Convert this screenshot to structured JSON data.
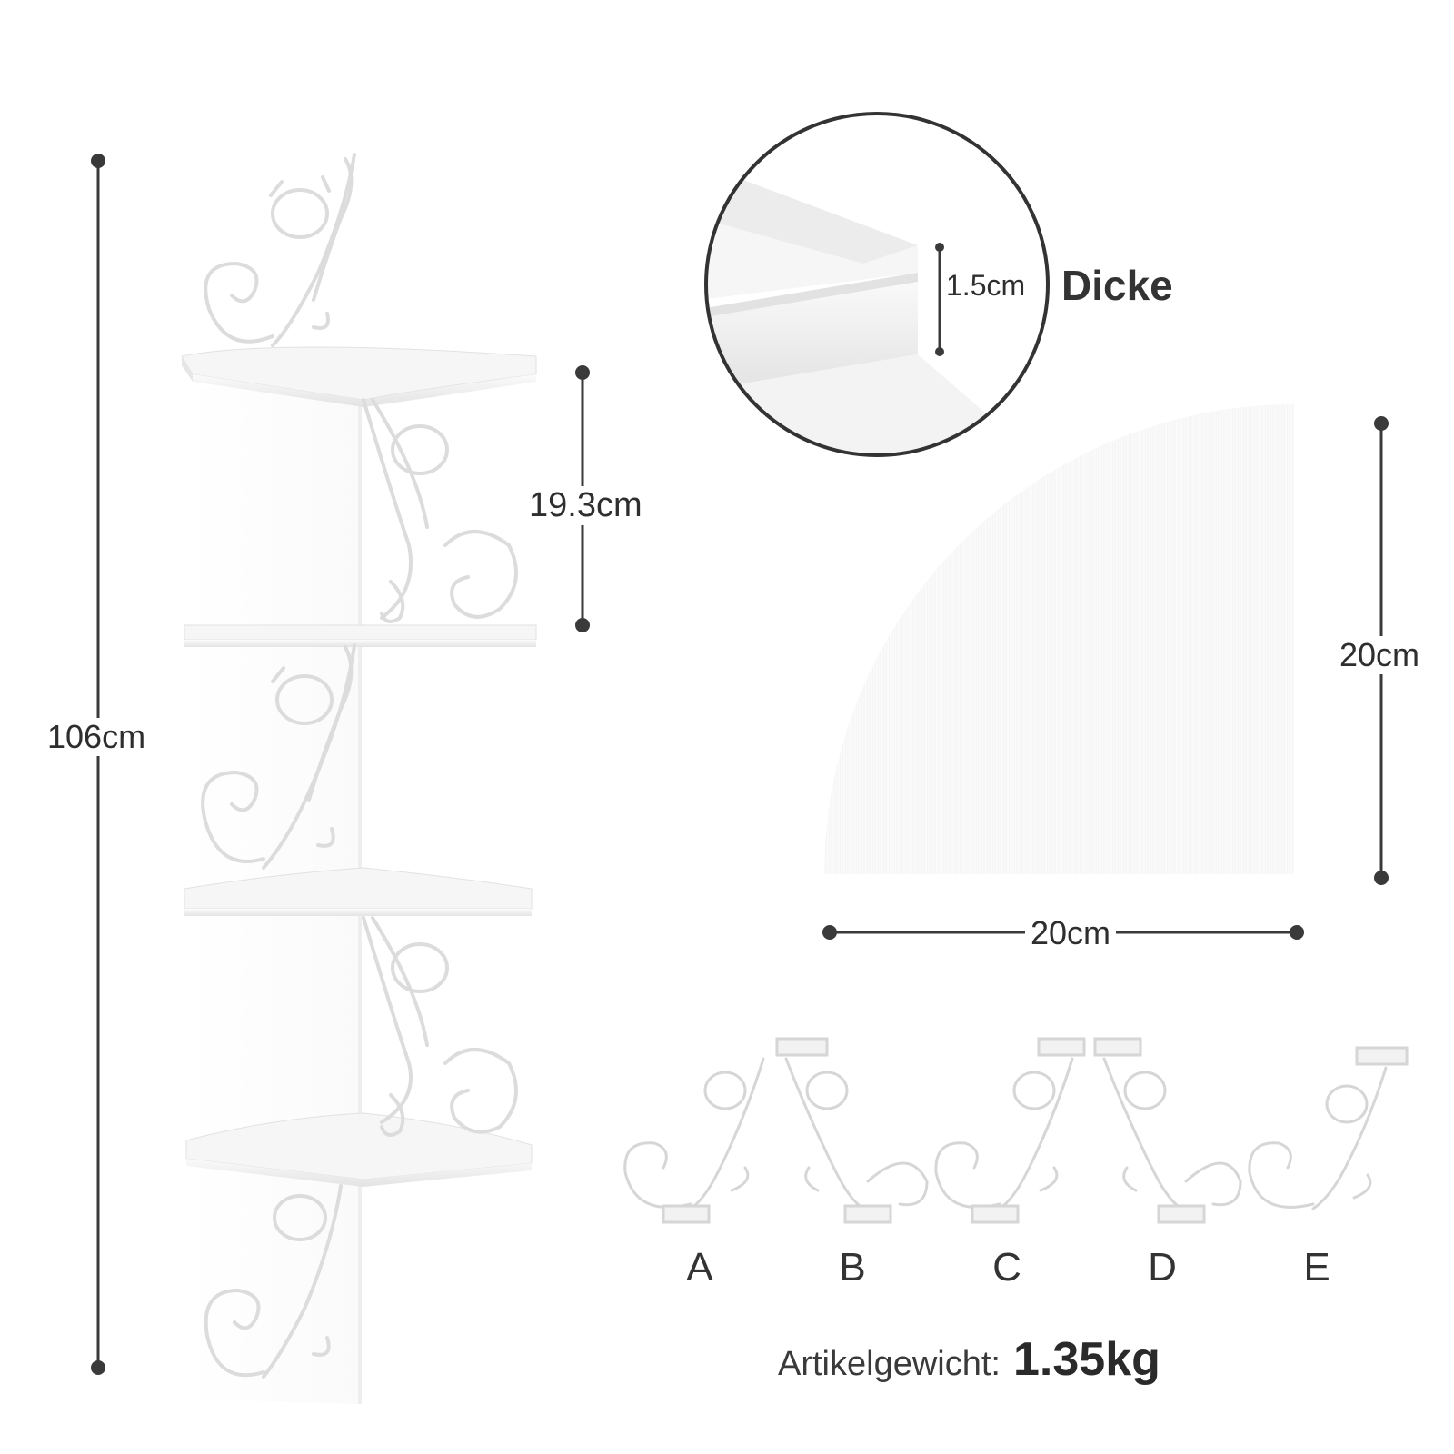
{
  "dimensions": {
    "total_height": "106cm",
    "shelf_spacing": "19.3cm",
    "thickness_value": "1.5cm",
    "thickness_word": "Dicke",
    "shelf_depth": "20cm",
    "shelf_width": "20cm"
  },
  "variants": [
    "A",
    "B",
    "C",
    "D",
    "E"
  ],
  "weight": {
    "label": "Artikelgewicht:",
    "value": "1.35kg"
  },
  "colors": {
    "background": "#ffffff",
    "dimension_line": "#3a3a3a",
    "shelf": "#f4f4f4",
    "bracket": "#e8e8e8"
  }
}
